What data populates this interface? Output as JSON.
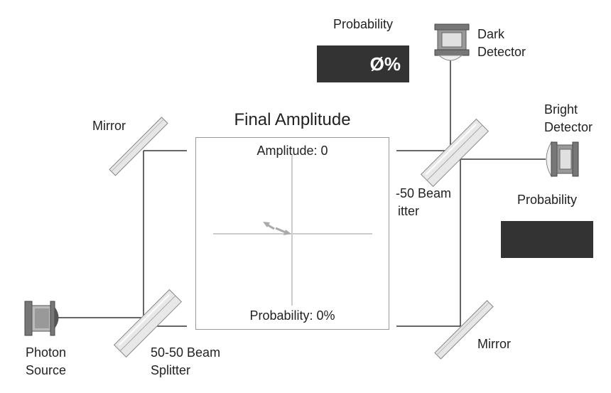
{
  "labels": {
    "mirror_top": "Mirror",
    "mirror_bottom": "Mirror",
    "splitter_bottom_line1": "50-50 Beam",
    "splitter_bottom_line2": "Splitter",
    "splitter_top_line1": "-50 Beam",
    "splitter_top_line2": "itter",
    "photon_source_line1": "Photon",
    "photon_source_line2": "Source",
    "dark_detector_line1": "Dark",
    "dark_detector_line2": "Detector",
    "bright_detector_line1": "Bright",
    "bright_detector_line2": "Detector"
  },
  "dark_probability": {
    "title": "Probability",
    "value": "Ø%"
  },
  "bright_probability": {
    "title": "Probability",
    "value": ""
  },
  "final_amplitude": {
    "title": "Final Amplitude",
    "amplitude_text": "Amplitude: 0",
    "probability_text": "Probability: 0%"
  },
  "colors": {
    "beam": "#333333",
    "mirror_glass": "#e6e6e6",
    "readout_bg": "#333333",
    "axis": "#cccccc",
    "arrow": "#aaaaaa"
  }
}
